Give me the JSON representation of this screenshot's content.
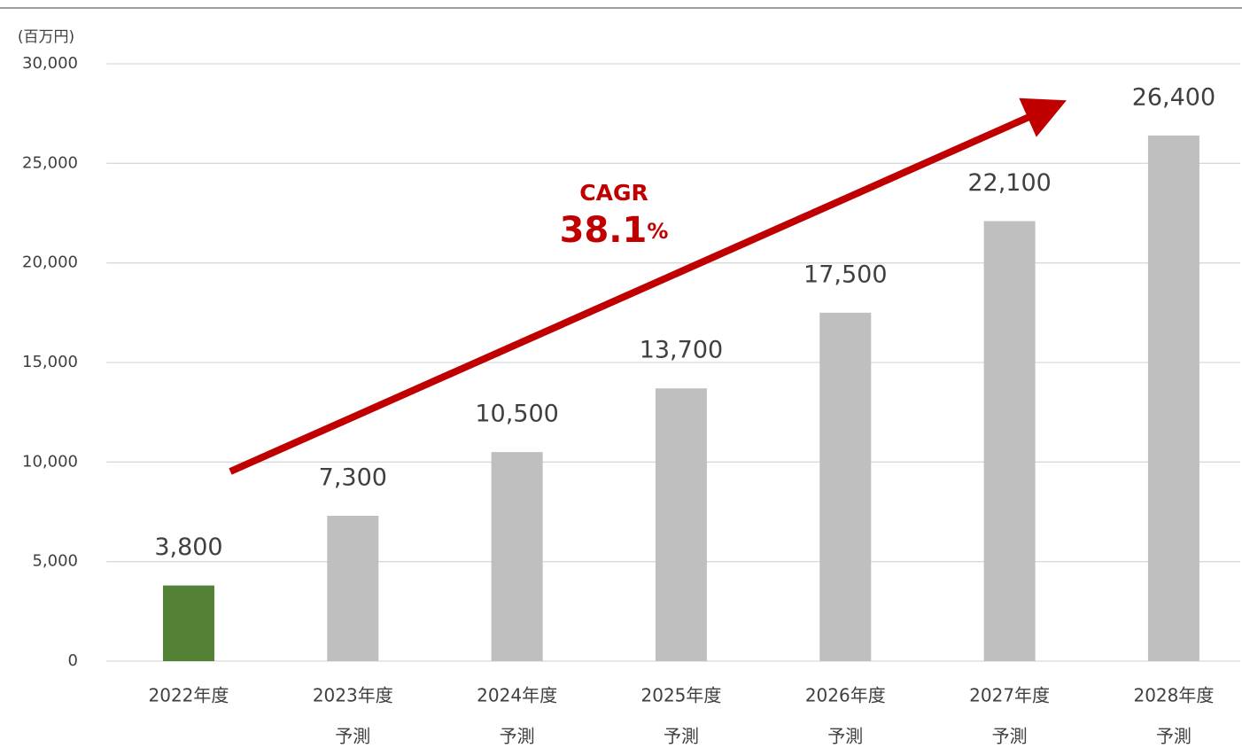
{
  "chart_data": {
    "type": "bar",
    "y_axis_label": "(百万円)",
    "categories": [
      [
        "2022年度"
      ],
      [
        "2023年度",
        "予測"
      ],
      [
        "2024年度",
        "予測"
      ],
      [
        "2025年度",
        "予測"
      ],
      [
        "2026年度",
        "予測"
      ],
      [
        "2027年度",
        "予測"
      ],
      [
        "2028年度",
        "予測"
      ]
    ],
    "values": [
      3800,
      7300,
      10500,
      13700,
      17500,
      22100,
      26400
    ],
    "value_labels": [
      "3,800",
      "7,300",
      "10,500",
      "13,700",
      "17,500",
      "22,100",
      "26,400"
    ],
    "colors": [
      "#538135",
      "#bfbfbf",
      "#bfbfbf",
      "#bfbfbf",
      "#bfbfbf",
      "#bfbfbf",
      "#bfbfbf"
    ],
    "ylim": [
      0,
      30000
    ],
    "yticks": [
      0,
      {
        "value": 5000,
        "label": "5,000"
      },
      {
        "value": 10000,
        "label": "10,000"
      },
      {
        "value": 15000,
        "label": "15,000"
      },
      {
        "value": 20000,
        "label": "20,000"
      },
      {
        "value": 25000,
        "label": "25,000"
      },
      {
        "value": 30000,
        "label": "30,000"
      }
    ],
    "grid": true,
    "annotation": {
      "title": "CAGR",
      "text": "38.1",
      "suffix": "%",
      "color": "#c00000"
    }
  }
}
